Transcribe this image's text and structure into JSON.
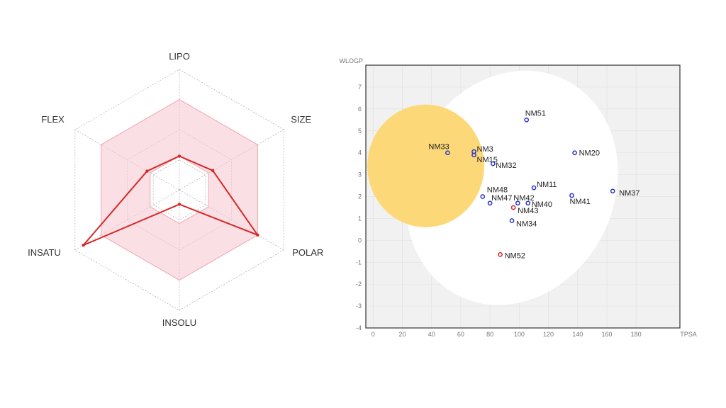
{
  "chart_data": [
    {
      "type": "radar",
      "axes": [
        "LIPO",
        "SIZE",
        "POLAR",
        "INSOLU",
        "INSATU",
        "FLEX"
      ],
      "optimal_band": {
        "inner": [
          0.28,
          0.28,
          0.28,
          0.28,
          0.28,
          0.28
        ],
        "outer": [
          0.75,
          0.75,
          0.75,
          0.75,
          0.75,
          0.75
        ]
      },
      "values": [
        0.28,
        0.32,
        0.75,
        0.12,
        0.92,
        0.31
      ],
      "colors": {
        "band": "#f7c9d2",
        "band_edge": "#f1a7b5",
        "line": "#d62828",
        "grid": "#bbbbbb"
      }
    },
    {
      "type": "scatter",
      "xlabel": "TPSA",
      "ylabel": "WLOGP",
      "xlim": [
        -5,
        210
      ],
      "ylim": [
        -4,
        8
      ],
      "xticks": [
        0,
        20,
        40,
        60,
        80,
        100,
        120,
        140,
        160,
        180
      ],
      "yticks": [
        -4,
        -3,
        -2,
        -1,
        0,
        1,
        2,
        3,
        4,
        5,
        6,
        7
      ],
      "white_region": {
        "cx": 95,
        "cy": 2.4,
        "rx": 70,
        "ry": 5.5
      },
      "yolk_region": {
        "cx": 36,
        "cy": 3.4,
        "rx": 40,
        "ry": 2.8
      },
      "points": [
        {
          "name": "NM51",
          "x": 105,
          "y": 5.5,
          "color": "#2b35c9"
        },
        {
          "name": "NM33",
          "x": 51,
          "y": 4.0,
          "color": "#2b35c9"
        },
        {
          "name": "NM3",
          "x": 69,
          "y": 4.05,
          "color": "#2b35c9"
        },
        {
          "name": "NM15",
          "x": 69,
          "y": 3.9,
          "color": "#2b35c9"
        },
        {
          "name": "NM32",
          "x": 82,
          "y": 3.5,
          "color": "#2b35c9"
        },
        {
          "name": "NM20",
          "x": 138,
          "y": 4.0,
          "color": "#2b35c9"
        },
        {
          "name": "NM11",
          "x": 110,
          "y": 2.4,
          "color": "#2b35c9"
        },
        {
          "name": "NM37",
          "x": 164,
          "y": 2.25,
          "color": "#2b35c9"
        },
        {
          "name": "NM48",
          "x": 75,
          "y": 2.0,
          "color": "#2b35c9"
        },
        {
          "name": "NM41",
          "x": 136,
          "y": 2.05,
          "color": "#2b35c9"
        },
        {
          "name": "NM47",
          "x": 80,
          "y": 1.7,
          "color": "#2b35c9"
        },
        {
          "name": "NM42",
          "x": 99,
          "y": 1.7,
          "color": "#2b35c9"
        },
        {
          "name": "NM40",
          "x": 106,
          "y": 1.7,
          "color": "#2b35c9"
        },
        {
          "name": "NM43",
          "x": 96,
          "y": 1.5,
          "color": "#d62828"
        },
        {
          "name": "NM34",
          "x": 95,
          "y": 0.9,
          "color": "#2b35c9"
        },
        {
          "name": "NM52",
          "x": 87,
          "y": -0.65,
          "color": "#d62828"
        }
      ],
      "colors": {
        "background": "#f1f1f1",
        "white": "#ffffff",
        "yolk": "#fcd878",
        "frame": "#333333",
        "grid": "#e2e2e2"
      }
    }
  ]
}
